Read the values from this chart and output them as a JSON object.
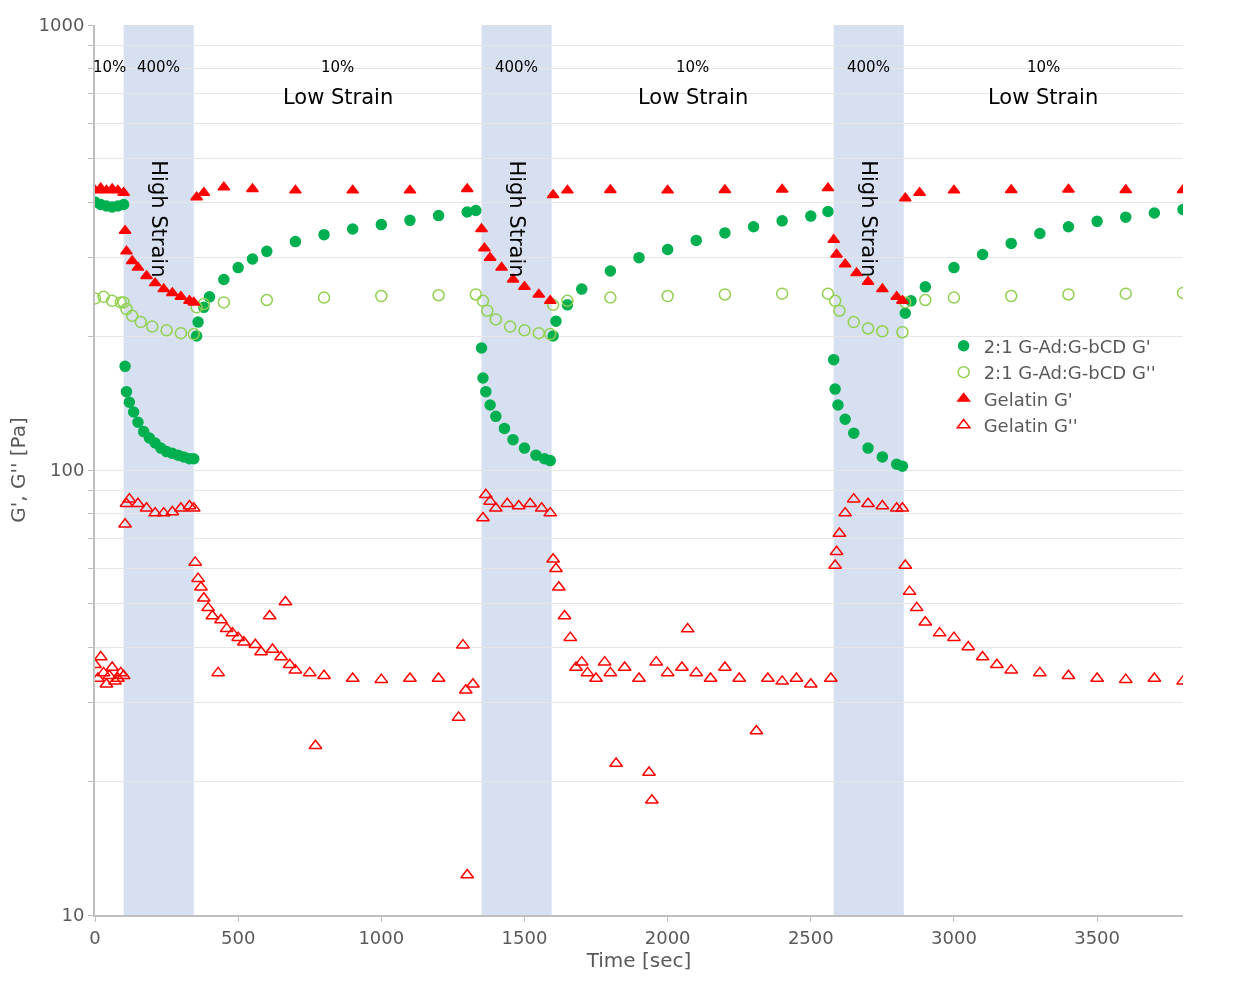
{
  "chart_data": {
    "type": "scatter",
    "xlabel": "Time [sec]",
    "ylabel": "G', G'' [Pa]",
    "xlim": [
      0,
      3800
    ],
    "xticks": [
      0,
      500,
      1000,
      1500,
      2000,
      2500,
      3000,
      3500
    ],
    "ylim": [
      10,
      1000
    ],
    "log": "y",
    "yticks": [
      10,
      {
        "value": 20,
        "label": null
      },
      {
        "value": 30,
        "label": null
      },
      {
        "value": 40,
        "label": null
      },
      {
        "value": 50,
        "label": null
      },
      {
        "value": 60,
        "label": null
      },
      {
        "value": 70,
        "label": null
      },
      {
        "value": 80,
        "label": null
      },
      {
        "value": 90,
        "label": null
      },
      100,
      {
        "value": 200,
        "label": null
      },
      {
        "value": 300,
        "label": null
      },
      {
        "value": 400,
        "label": null
      },
      {
        "value": 500,
        "label": null
      },
      {
        "value": 600,
        "label": null
      },
      {
        "value": 700,
        "label": null
      },
      {
        "value": 800,
        "label": null
      },
      {
        "value": 900,
        "label": null
      },
      1000
    ],
    "grid": "y",
    "legend": "right",
    "bands": [
      {
        "axis": "x",
        "from": 100,
        "to": 345,
        "label": "High Strain",
        "color": "#d6e0f1"
      },
      {
        "axis": "x",
        "from": 1350,
        "to": 1595,
        "label": "High Strain",
        "color": "#d6e0f1"
      },
      {
        "axis": "x",
        "from": 2580,
        "to": 2825,
        "label": "High Strain",
        "color": "#d6e0f1"
      }
    ],
    "annotations": [
      "10%",
      "400%",
      "10%",
      "Low Strain",
      "400%",
      "10%",
      "Low Strain",
      "400%",
      "10%",
      "Low Strain"
    ],
    "series": [
      {
        "name": "2:1 G-Ad:G-bCD G'",
        "color": "#00b050",
        "marker": "circle",
        "x": [
          0,
          20,
          40,
          60,
          80,
          100,
          105,
          110,
          120,
          135,
          150,
          170,
          190,
          210,
          230,
          250,
          270,
          290,
          310,
          330,
          345,
          355,
          360,
          380,
          400,
          450,
          500,
          550,
          600,
          700,
          800,
          900,
          1000,
          1100,
          1200,
          1300,
          1330,
          1350,
          1355,
          1365,
          1380,
          1400,
          1430,
          1460,
          1500,
          1540,
          1570,
          1590,
          1600,
          1610,
          1650,
          1700,
          1800,
          1900,
          2000,
          2100,
          2200,
          2300,
          2400,
          2500,
          2560,
          2580,
          2585,
          2595,
          2620,
          2650,
          2700,
          2750,
          2800,
          2820,
          2830,
          2850,
          2900,
          3000,
          3100,
          3200,
          3300,
          3400,
          3500,
          3600,
          3700,
          3800
        ],
        "values": [
          400,
          395,
          392,
          390,
          392,
          395,
          171,
          150,
          142,
          135,
          128,
          122,
          118,
          115,
          112,
          110,
          109,
          108,
          107,
          106,
          106,
          200,
          215,
          232,
          245,
          268,
          285,
          298,
          310,
          326,
          338,
          348,
          356,
          364,
          373,
          380,
          383,
          188,
          161,
          150,
          140,
          132,
          124,
          117,
          112,
          108,
          106,
          105,
          200,
          216,
          235,
          255,
          280,
          300,
          313,
          328,
          341,
          352,
          363,
          372,
          381,
          177,
          152,
          140,
          130,
          121,
          112,
          107,
          103,
          102,
          225,
          240,
          258,
          285,
          305,
          323,
          340,
          352,
          362,
          370,
          378,
          385
        ]
      },
      {
        "name": "2:1 G-Ad:G-bCD G''",
        "color": "#92d050",
        "marker": "circle-open",
        "x": [
          0,
          30,
          60,
          90,
          100,
          110,
          130,
          160,
          200,
          250,
          300,
          345,
          355,
          380,
          450,
          600,
          800,
          1000,
          1200,
          1330,
          1355,
          1370,
          1400,
          1450,
          1500,
          1550,
          1590,
          1600,
          1650,
          1800,
          2000,
          2200,
          2400,
          2560,
          2585,
          2600,
          2650,
          2700,
          2750,
          2820,
          2830,
          2900,
          3000,
          3200,
          3400,
          3600,
          3800
        ],
        "values": [
          243,
          245,
          240,
          238,
          238,
          230,
          222,
          215,
          210,
          206,
          203,
          202,
          232,
          236,
          238,
          241,
          244,
          246,
          247,
          248,
          240,
          228,
          218,
          210,
          206,
          203,
          202,
          235,
          240,
          244,
          246,
          248,
          249,
          249,
          240,
          228,
          215,
          208,
          205,
          204,
          238,
          241,
          244,
          246,
          248,
          249,
          250
        ]
      },
      {
        "name": "Gelatin G'",
        "color": "#ff0000",
        "marker": "triangle",
        "x": [
          0,
          20,
          40,
          60,
          80,
          100,
          105,
          110,
          130,
          150,
          180,
          210,
          240,
          270,
          300,
          330,
          345,
          355,
          380,
          450,
          550,
          700,
          900,
          1100,
          1300,
          1350,
          1360,
          1380,
          1420,
          1460,
          1500,
          1550,
          1590,
          1600,
          1650,
          1800,
          2000,
          2200,
          2400,
          2560,
          2580,
          2590,
          2620,
          2660,
          2700,
          2750,
          2800,
          2820,
          2830,
          2880,
          3000,
          3200,
          3400,
          3600,
          3800
        ],
        "values": [
          425,
          430,
          425,
          428,
          425,
          420,
          345,
          310,
          295,
          285,
          273,
          263,
          255,
          250,
          245,
          240,
          238,
          410,
          420,
          432,
          428,
          425,
          425,
          425,
          428,
          348,
          315,
          300,
          285,
          268,
          258,
          248,
          240,
          415,
          425,
          426,
          425,
          426,
          427,
          430,
          329,
          305,
          290,
          277,
          265,
          255,
          245,
          240,
          408,
          420,
          425,
          426,
          427,
          426,
          426
        ]
      },
      {
        "name": "Gelatin G''",
        "color": "#ff0000",
        "marker": "triangle-open",
        "x": [
          0,
          10,
          20,
          30,
          40,
          50,
          60,
          70,
          80,
          90,
          100,
          105,
          110,
          120,
          150,
          180,
          210,
          240,
          270,
          300,
          330,
          345,
          350,
          360,
          370,
          380,
          395,
          410,
          430,
          440,
          460,
          480,
          500,
          520,
          560,
          580,
          610,
          620,
          650,
          665,
          680,
          700,
          750,
          770,
          800,
          900,
          1000,
          1100,
          1200,
          1270,
          1285,
          1295,
          1300,
          1320,
          1355,
          1365,
          1380,
          1400,
          1440,
          1480,
          1520,
          1560,
          1590,
          1600,
          1610,
          1620,
          1640,
          1660,
          1680,
          1700,
          1720,
          1750,
          1780,
          1800,
          1820,
          1850,
          1900,
          1935,
          1945,
          1960,
          2000,
          2050,
          2070,
          2100,
          2150,
          2200,
          2250,
          2310,
          2350,
          2400,
          2450,
          2500,
          2570,
          2585,
          2590,
          2600,
          2620,
          2650,
          2700,
          2750,
          2800,
          2820,
          2830,
          2845,
          2870,
          2900,
          2950,
          3000,
          3050,
          3100,
          3150,
          3200,
          3300,
          3400,
          3500,
          3600,
          3700,
          3800
        ],
        "values": [
          36.5,
          34,
          38,
          35,
          33,
          34.5,
          36,
          33.5,
          34,
          35,
          34.5,
          75.5,
          84,
          86,
          84,
          82,
          80,
          80,
          80.5,
          82,
          83,
          82,
          62,
          57,
          54.5,
          51.5,
          49,
          47,
          35,
          46,
          44,
          43,
          42,
          41,
          40.5,
          39,
          47,
          39.5,
          38,
          50.5,
          36.5,
          35.5,
          35,
          24,
          34.5,
          34,
          33.8,
          34,
          34,
          27.8,
          40.4,
          32,
          12.3,
          33,
          78,
          88,
          85,
          82,
          84,
          83,
          84,
          82,
          80,
          63,
          60,
          54.5,
          47,
          42,
          36,
          37,
          35,
          34,
          37,
          35,
          21.9,
          36,
          34,
          20.9,
          18.1,
          37,
          35,
          36,
          43.9,
          35,
          34,
          36,
          34,
          25.9,
          34,
          33.5,
          34,
          33,
          34,
          61,
          65.5,
          72,
          80,
          86,
          84,
          83,
          82,
          82,
          61,
          53.3,
          49,
          45.5,
          43,
          42,
          40,
          38,
          36.5,
          35.5,
          35,
          34.5,
          34,
          33.8,
          34,
          33.5
        ]
      }
    ]
  }
}
